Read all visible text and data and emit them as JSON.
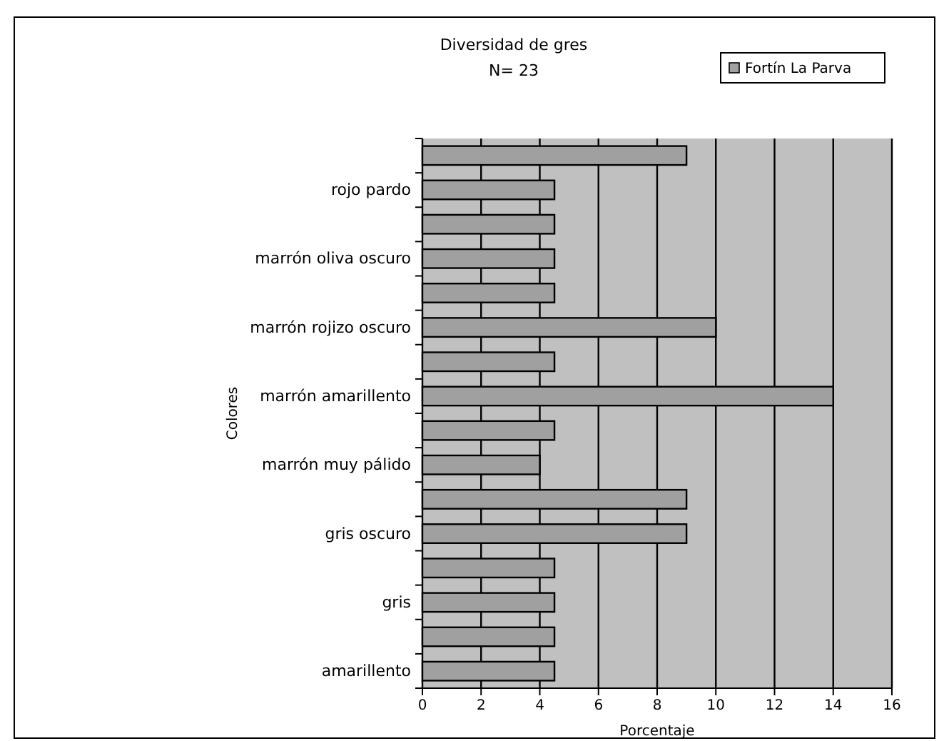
{
  "chart_data": {
    "type": "bar",
    "orientation": "horizontal",
    "title": "Diversidad de gres",
    "subtitle": "N= 23",
    "xlabel": "Porcentaje",
    "ylabel": "Colores",
    "categories": [
      null,
      "rojo pardo",
      null,
      "marrón oliva oscuro",
      null,
      "marrón rojizo oscuro",
      null,
      "marrón amarillento",
      null,
      "marrón muy pálido",
      null,
      "gris oscuro",
      null,
      "gris",
      null,
      "amarillento"
    ],
    "series": [
      {
        "name": "Fortín La Parva",
        "color": "#a0a0a0",
        "values": [
          9,
          4.5,
          4.5,
          4.5,
          4.5,
          10,
          4.5,
          14,
          4.5,
          4,
          9,
          9,
          4.5,
          4.5,
          4.5,
          4.5
        ]
      }
    ],
    "xlim": [
      0,
      16
    ],
    "xticks": [
      0,
      2,
      4,
      6,
      8,
      10,
      12,
      14,
      16
    ],
    "grid": "x",
    "legend": "top right"
  }
}
